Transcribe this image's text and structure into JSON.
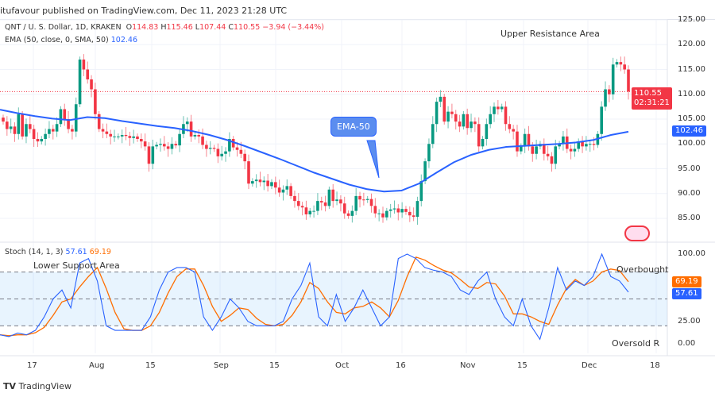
{
  "header": {
    "published": "itufavour published on TradingView.com, Dec 11, 2023 21:28 UTC",
    "symbol": "QNT / U. S. Dollar, 1D, KRAKEN",
    "o_label": "O",
    "o": "114.83",
    "h_label": "H",
    "h": "115.46",
    "l_label": "L",
    "l": "107.44",
    "c_label": "C",
    "c": "110.55",
    "change": "−3.94 (−3.44%)",
    "ema_label": "EMA (50, close, 0, SMA, 50)",
    "ema_value": "102.46",
    "stoch_label": "Stoch (14, 1, 3)",
    "stoch_k": "57.61",
    "stoch_d": "69.19"
  },
  "footer": {
    "brand": "TradingView"
  },
  "colors": {
    "up": "#089981",
    "down": "#f23645",
    "ema": "#2962ff",
    "k": "#2962ff",
    "d": "#ff6d00"
  },
  "chart_data": [
    {
      "type": "candlestick",
      "title": "",
      "ylim": [
        80,
        127
      ],
      "yticks": [
        "125.00",
        "120.00",
        "115.00",
        "110.00",
        "105.00",
        "100.00",
        "95.00",
        "90.00",
        "85.00"
      ],
      "xticks": [
        "17",
        "Aug",
        "15",
        "Sep",
        "15",
        "Oct",
        "16",
        "Nov",
        "15",
        "Dec",
        "18"
      ],
      "last_price": "110.55",
      "countdown": "02:31:21",
      "ema_last": "102.46",
      "annotations": [
        "Upper Resistance Area",
        "EMA-50"
      ],
      "close": [
        104.5,
        103,
        103.5,
        102,
        106,
        101.5,
        104,
        103,
        101,
        100.5,
        101,
        102,
        103,
        102.5,
        104,
        107,
        105,
        103,
        102.5,
        108,
        117,
        115,
        113,
        111,
        106,
        103,
        102.5,
        102,
        101.5,
        101.5,
        101.5,
        101.8,
        101.6,
        101.2,
        101.5,
        101,
        100.5,
        99.5,
        96,
        99.5,
        99.8,
        100,
        99.5,
        99,
        100,
        99.7,
        102,
        104,
        104.5,
        101.5,
        101.8,
        101.5,
        99.8,
        99,
        99.2,
        99,
        97.5,
        98,
        98.5,
        101,
        99.3,
        98.8,
        98,
        96.5,
        92,
        92.5,
        92.8,
        92.3,
        92.6,
        91.5,
        92.3,
        91.2,
        90.2,
        90.8,
        91.5,
        89.5,
        88.5,
        87.5,
        87.2,
        85.8,
        86.5,
        86.5,
        88.5,
        88.2,
        87.5,
        90.8,
        88.5,
        88.8,
        88,
        86,
        85.5,
        86.5,
        89.5,
        88.8,
        88.7,
        88.9,
        87.5,
        86,
        86,
        85.2,
        86.5,
        86.8,
        87,
        86.2,
        86.9,
        86.3,
        85.6,
        85.3,
        88.5,
        92.5,
        96.5,
        100,
        104,
        108.5,
        109.5,
        104.5,
        106.5,
        106,
        104.5,
        103.5,
        106,
        103.2,
        104.5,
        104,
        99.5,
        101,
        104,
        106,
        107.5,
        107,
        107.5,
        104,
        103,
        102.5,
        98.5,
        99.5,
        102,
        99.5,
        98,
        99.5,
        100,
        98,
        97.5,
        96,
        99.5,
        100,
        101.5,
        99,
        98.5,
        99,
        100.5,
        99.5,
        100,
        100,
        99.8,
        102,
        107.5,
        111,
        110,
        116,
        116.5,
        116,
        115,
        110.55
      ],
      "ema50": [
        106.9,
        106.2,
        105.6,
        105.1,
        104.8,
        105.4,
        105.2,
        104.6,
        104.1,
        103.6,
        103.2,
        102.6,
        101.8,
        100.8,
        99.6,
        98.3,
        97.0,
        95.6,
        94.2,
        93.0,
        91.8,
        90.9,
        90.4,
        90.6,
        92.0,
        94.2,
        96.3,
        97.8,
        98.8,
        99.4,
        99.6,
        99.8,
        100.0,
        100.3,
        100.8,
        101.8,
        102.46
      ]
    },
    {
      "type": "line",
      "title": "Stoch (14, 1, 3)",
      "ylim": [
        0,
        100
      ],
      "yticks": [
        "100.00",
        "75.00",
        "50.00",
        "25.00",
        "0.00"
      ],
      "bands": [
        80,
        50,
        20
      ],
      "annotations": [
        "Lower Support Area",
        "Overbought",
        "Oversold R"
      ],
      "k": [
        10,
        8,
        12,
        10,
        15,
        30,
        50,
        60,
        40,
        90,
        95,
        70,
        20,
        15,
        15,
        15,
        15,
        30,
        60,
        80,
        85,
        85,
        80,
        30,
        15,
        30,
        50,
        40,
        25,
        20,
        20,
        20,
        25,
        50,
        65,
        90,
        30,
        20,
        55,
        25,
        40,
        60,
        40,
        20,
        30,
        95,
        100,
        95,
        85,
        82,
        80,
        75,
        60,
        55,
        70,
        80,
        50,
        30,
        20,
        50,
        20,
        5,
        40,
        85,
        60,
        70,
        65,
        75,
        100,
        75,
        70,
        57.61
      ],
      "d_last": 69.19
    }
  ]
}
